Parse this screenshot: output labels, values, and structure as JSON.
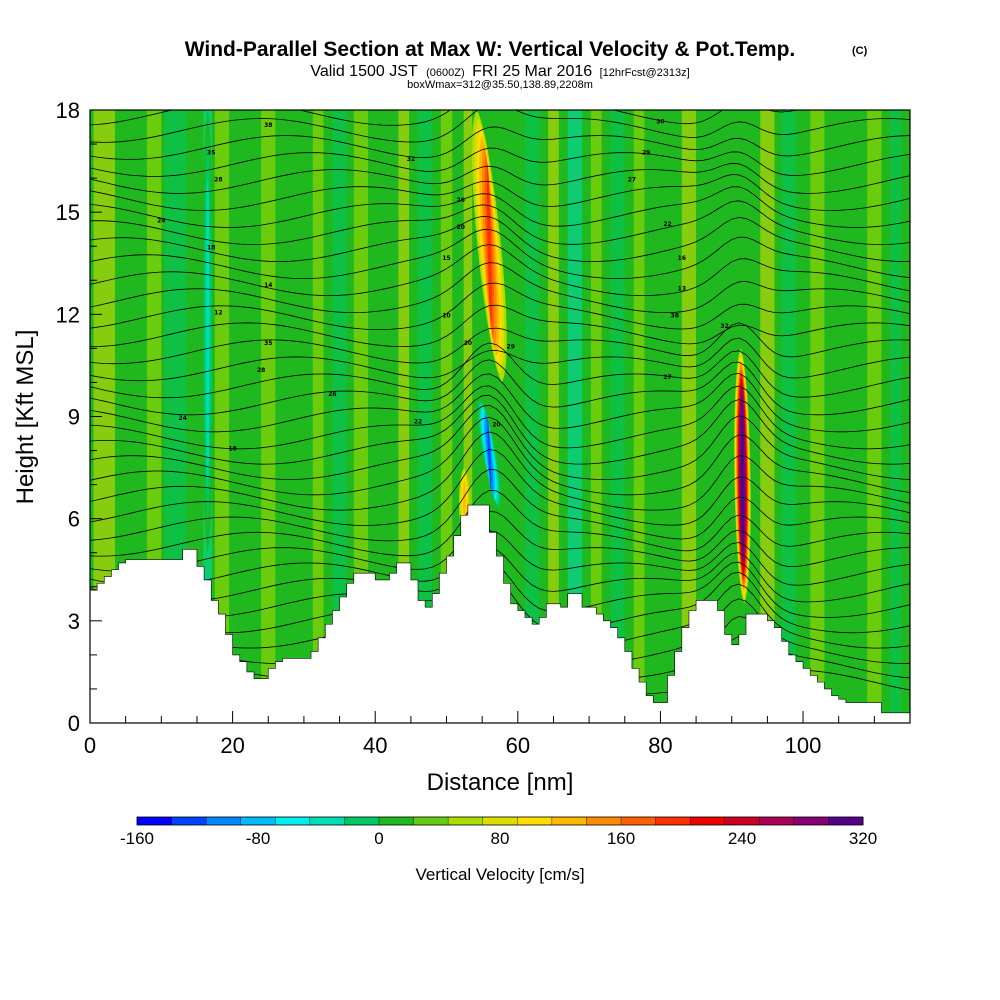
{
  "header": {
    "title": "Wind-Parallel Section at Max W: Vertical Velocity & Pot.Temp.",
    "copyright": "(C)",
    "valid_pre": "Valid 1500 JST",
    "valid_utc": "(0600Z)",
    "valid_date": "FRI 25 Mar 2016",
    "forecast": "[12hrFcst@2313z]",
    "box_info": "boxWmax=312@35.50,138.89,2208m"
  },
  "colors": {
    "background_field": "#1fb81f",
    "terrain": "#ffffff",
    "contour": "#000000",
    "scale": [
      "#0000ff",
      "#0044ff",
      "#0088ff",
      "#00bbff",
      "#00eeee",
      "#00dcb4",
      "#00c864",
      "#1fb81f",
      "#66cc11",
      "#aadd00",
      "#dddd00",
      "#ffdd00",
      "#ffb800",
      "#ff8c00",
      "#ff6000",
      "#ff3000",
      "#ee0000",
      "#cc0022",
      "#aa0055",
      "#880077",
      "#550088"
    ]
  },
  "chart_data": {
    "type": "heatmap",
    "title": "Wind-Parallel Section at Max W: Vertical Velocity & Pot.Temp.",
    "xlabel": "Distance [nm]",
    "ylabel": "Height [Kft MSL]",
    "xlim": [
      0,
      115
    ],
    "ylim": [
      0,
      18
    ],
    "x_ticks": [
      0,
      20,
      40,
      60,
      80,
      100
    ],
    "x_tick_labels": [
      "0",
      "20",
      "40",
      "60",
      "80",
      "100"
    ],
    "y_ticks": [
      0,
      3,
      6,
      9,
      12,
      15,
      18
    ],
    "y_tick_labels": [
      "0",
      "3",
      "6",
      "9",
      "12",
      "15",
      "18"
    ],
    "colorbar": {
      "title": "Vertical Velocity [cm/s]",
      "min": -160,
      "max": 320,
      "step": 20,
      "labels": [
        "-160",
        "-80",
        "0",
        "80",
        "160",
        "240",
        "320"
      ],
      "label_values": [
        -160,
        -80,
        0,
        80,
        160,
        240,
        320
      ]
    },
    "terrain_kft": [
      [
        0,
        3.9
      ],
      [
        1,
        4.1
      ],
      [
        2,
        4.3
      ],
      [
        3,
        4.5
      ],
      [
        4,
        4.7
      ],
      [
        5,
        4.8
      ],
      [
        8,
        4.8
      ],
      [
        12,
        4.8
      ],
      [
        13,
        5.1
      ],
      [
        14,
        5.1
      ],
      [
        15,
        4.6
      ],
      [
        16,
        4.2
      ],
      [
        17,
        3.6
      ],
      [
        18,
        3.2
      ],
      [
        19,
        2.6
      ],
      [
        20,
        2.0
      ],
      [
        21,
        1.8
      ],
      [
        22,
        1.5
      ],
      [
        23,
        1.3
      ],
      [
        24,
        1.3
      ],
      [
        25,
        1.6
      ],
      [
        26,
        1.8
      ],
      [
        27,
        1.9
      ],
      [
        28,
        1.9
      ],
      [
        30,
        1.9
      ],
      [
        31,
        2.1
      ],
      [
        32,
        2.5
      ],
      [
        33,
        2.9
      ],
      [
        34,
        3.3
      ],
      [
        35,
        3.7
      ],
      [
        36,
        4.1
      ],
      [
        37,
        4.4
      ],
      [
        38,
        4.4
      ],
      [
        39,
        4.4
      ],
      [
        40,
        4.2
      ],
      [
        41,
        4.2
      ],
      [
        42,
        4.4
      ],
      [
        43,
        4.7
      ],
      [
        44,
        4.7
      ],
      [
        45,
        4.2
      ],
      [
        46,
        3.6
      ],
      [
        47,
        3.4
      ],
      [
        48,
        3.8
      ],
      [
        49,
        4.4
      ],
      [
        50,
        4.9
      ],
      [
        51,
        5.5
      ],
      [
        52,
        6.1
      ],
      [
        53,
        6.4
      ],
      [
        55,
        6.4
      ],
      [
        56,
        5.6
      ],
      [
        57,
        4.9
      ],
      [
        58,
        4.1
      ],
      [
        59,
        3.5
      ],
      [
        60,
        3.3
      ],
      [
        61,
        3.1
      ],
      [
        62,
        2.9
      ],
      [
        63,
        3.1
      ],
      [
        64,
        3.5
      ],
      [
        65,
        3.5
      ],
      [
        66,
        3.4
      ],
      [
        67,
        3.8
      ],
      [
        68,
        3.8
      ],
      [
        69,
        3.4
      ],
      [
        70,
        3.4
      ],
      [
        71,
        3.2
      ],
      [
        72,
        3.0
      ],
      [
        73,
        2.8
      ],
      [
        74,
        2.5
      ],
      [
        75,
        2.1
      ],
      [
        76,
        1.6
      ],
      [
        77,
        1.2
      ],
      [
        78,
        0.8
      ],
      [
        79,
        0.6
      ],
      [
        80,
        0.6
      ],
      [
        81,
        1.4
      ],
      [
        82,
        2.1
      ],
      [
        83,
        2.8
      ],
      [
        84,
        3.3
      ],
      [
        85,
        3.6
      ],
      [
        87,
        3.6
      ],
      [
        88,
        3.3
      ],
      [
        89,
        2.6
      ],
      [
        90,
        2.3
      ],
      [
        91,
        2.6
      ],
      [
        92,
        3.2
      ],
      [
        94,
        3.2
      ],
      [
        95,
        3.0
      ],
      [
        96,
        2.8
      ],
      [
        97,
        2.4
      ],
      [
        98,
        2.0
      ],
      [
        99,
        1.8
      ],
      [
        100,
        1.6
      ],
      [
        101,
        1.4
      ],
      [
        102,
        1.2
      ],
      [
        103,
        1.0
      ],
      [
        104,
        0.8
      ],
      [
        105,
        0.7
      ],
      [
        106,
        0.6
      ],
      [
        110,
        0.6
      ],
      [
        111,
        0.3
      ],
      [
        115,
        0.3
      ]
    ],
    "updrafts": [
      {
        "x": 56.0,
        "y_top": 18.0,
        "y_bottom": 10.0,
        "peak": 150,
        "width": 2.2,
        "tilt": -3.5
      },
      {
        "x": 91.5,
        "y_top": 11.0,
        "y_bottom": 3.5,
        "peak": 312,
        "width": 1.5,
        "tilt": -0.5
      },
      {
        "x": 16.5,
        "y_top": 18.0,
        "y_bottom": 5.0,
        "peak": -60,
        "width": 1.2,
        "tilt": 0
      },
      {
        "x": 56.0,
        "y_top": 9.6,
        "y_bottom": 6.2,
        "peak": -150,
        "width": 1.4,
        "tilt": -3.0
      },
      {
        "x": 52.5,
        "y_top": 7.5,
        "y_bottom": 5.5,
        "peak": 80,
        "width": 1.0,
        "tilt": 0
      }
    ],
    "theta_labels": [
      "38",
      "35",
      "32",
      "30",
      "29",
      "28",
      "27",
      "26",
      "24",
      "22",
      "20",
      "18",
      "16",
      "15",
      "14",
      "13",
      "12",
      "10"
    ]
  }
}
